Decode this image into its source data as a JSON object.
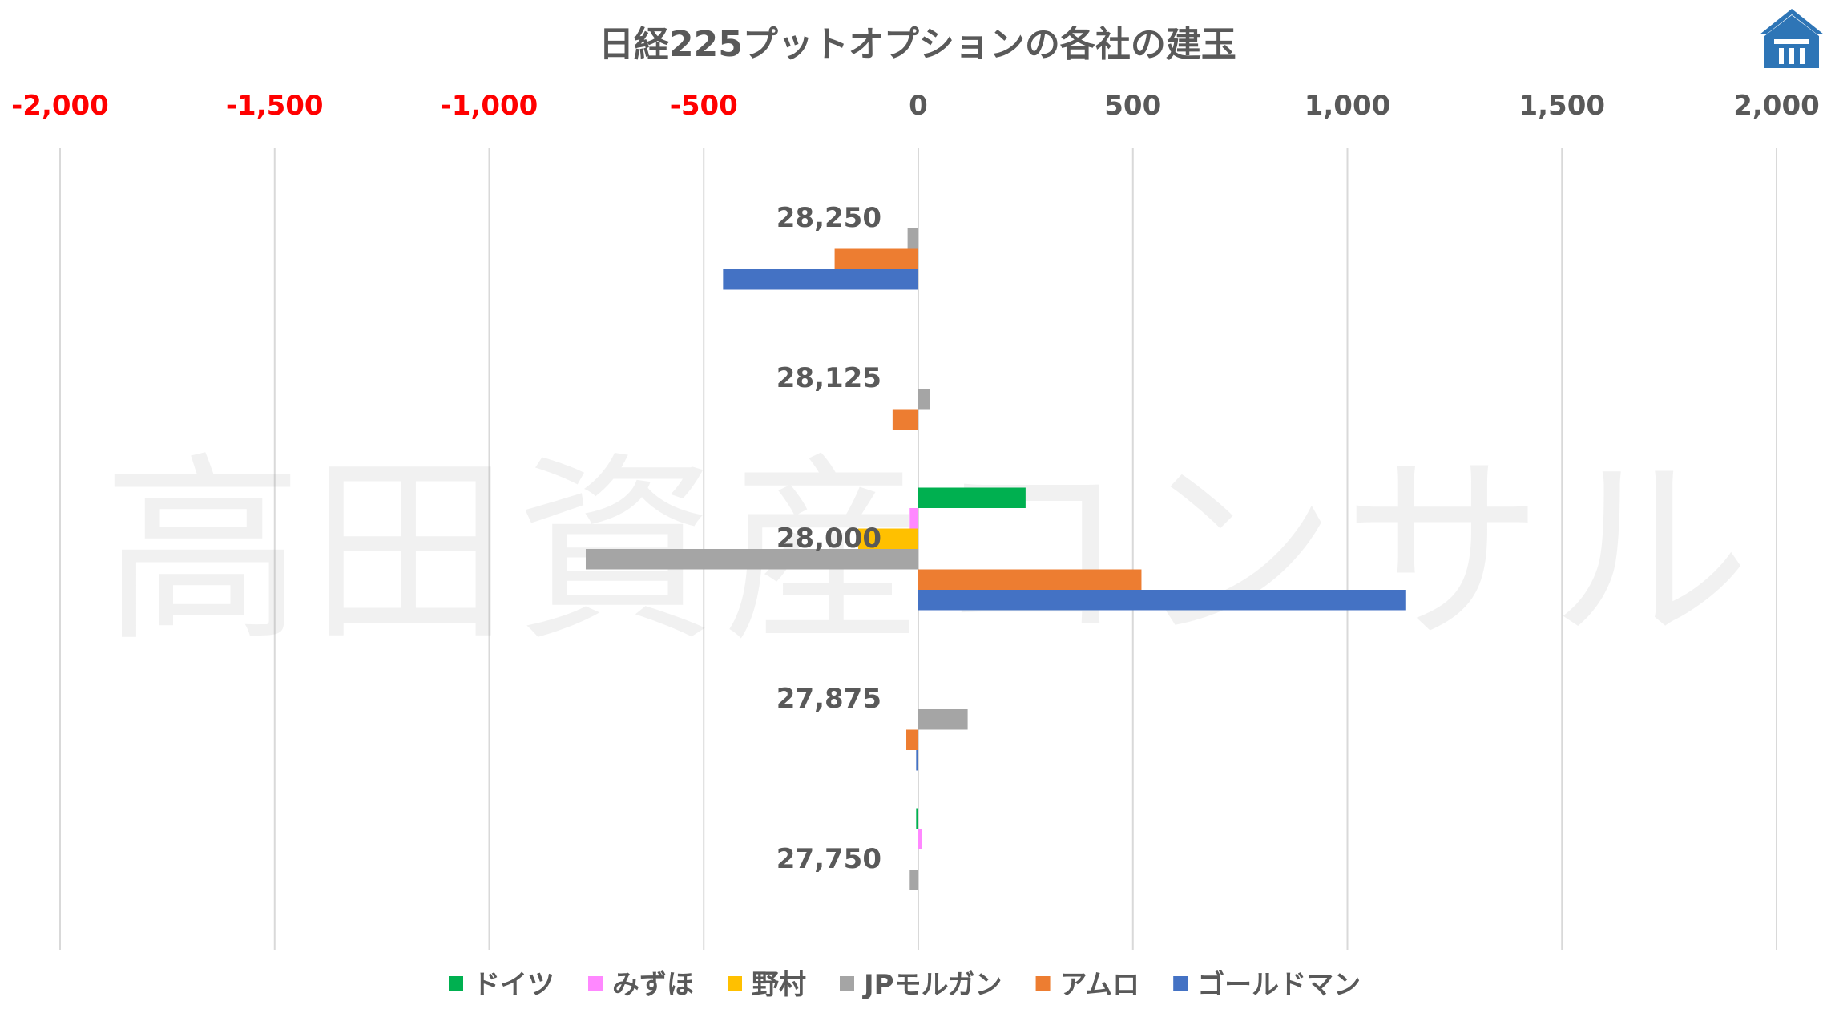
{
  "chart_data": {
    "type": "bar",
    "orientation": "horizontal",
    "title": "日経225プットオプションの各社の建玉",
    "xlim": [
      -2000,
      2000
    ],
    "x_ticks": [
      -2000,
      -1500,
      -1000,
      -500,
      0,
      500,
      1000,
      1500,
      2000
    ],
    "x_tick_labels": [
      "-2,000",
      "-1,500",
      "-1,000",
      "-500",
      "0",
      "500",
      "1,000",
      "1,500",
      "2,000"
    ],
    "negative_tick_color": "#ff0000",
    "positive_tick_color": "#595959",
    "grid": "vertical",
    "legend_position": "bottom",
    "categories": [
      "28,250",
      "28,125",
      "28,000",
      "27,875",
      "27,750"
    ],
    "series": [
      {
        "name": "ドイツ",
        "color": "#00b050",
        "values": [
          0,
          0,
          250,
          0,
          -5
        ]
      },
      {
        "name": "みずほ",
        "color": "#ff88ff",
        "values": [
          0,
          0,
          -20,
          0,
          8
        ]
      },
      {
        "name": "野村",
        "color": "#ffc000",
        "values": [
          0,
          0,
          -140,
          0,
          0
        ]
      },
      {
        "name": "JPモルガン",
        "color": "#a5a5a5",
        "values": [
          -25,
          28,
          -775,
          115,
          -20
        ]
      },
      {
        "name": "アムロ",
        "color": "#ed7d31",
        "values": [
          -195,
          -60,
          520,
          -28,
          0
        ]
      },
      {
        "name": "ゴールドマン",
        "color": "#4472c4",
        "values": [
          -455,
          0,
          1135,
          -5,
          0
        ]
      }
    ],
    "watermark": "高田資産コンサル"
  }
}
